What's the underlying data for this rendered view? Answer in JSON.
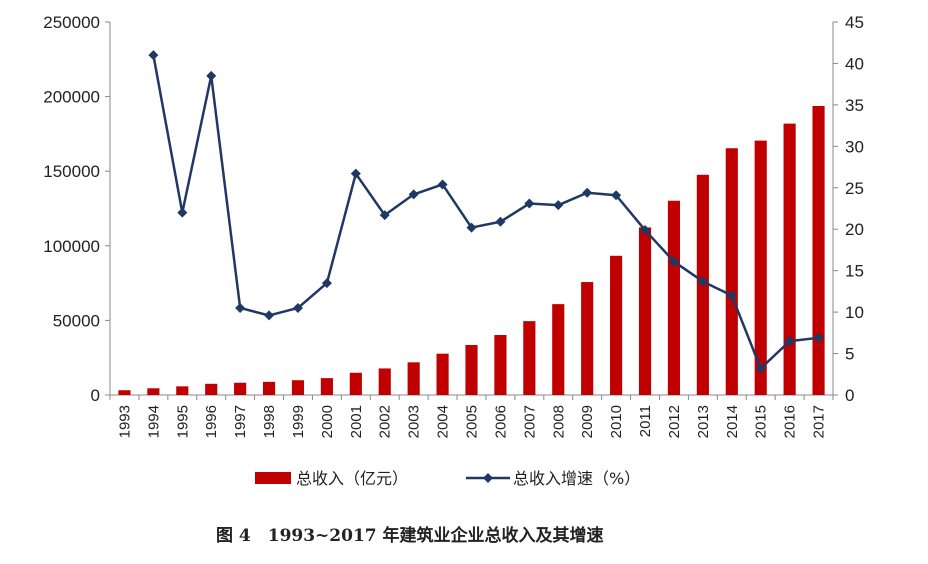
{
  "chart_data": {
    "type": "bar+line",
    "categories": [
      "1993",
      "1994",
      "1995",
      "1996",
      "1997",
      "1998",
      "1999",
      "2000",
      "2001",
      "2002",
      "2003",
      "2004",
      "2005",
      "2006",
      "2007",
      "2008",
      "2009",
      "2010",
      "2011",
      "2012",
      "2013",
      "2014",
      "2015",
      "2016",
      "2017"
    ],
    "series": [
      {
        "name": "总收入（亿元）",
        "type": "bar",
        "axis": "left",
        "color": "#C00000",
        "values": [
          3200,
          4500,
          5800,
          7500,
          8200,
          8800,
          9900,
          11300,
          14900,
          17800,
          21900,
          27700,
          33500,
          40200,
          49500,
          60900,
          75700,
          93300,
          112300,
          130200,
          147600,
          165400,
          170500,
          181900,
          193700
        ]
      },
      {
        "name": "总收入增速（%）",
        "type": "line",
        "axis": "right",
        "color": "#1F3864",
        "marker": "diamond",
        "values": [
          null,
          41.0,
          22.0,
          38.5,
          10.5,
          9.6,
          10.5,
          13.5,
          26.7,
          21.7,
          24.2,
          25.4,
          20.2,
          20.9,
          23.1,
          22.9,
          24.4,
          24.1,
          19.9,
          16.1,
          13.7,
          12.0,
          3.2,
          6.5,
          6.9
        ]
      }
    ],
    "y_left": {
      "ticks": [
        "0",
        "50000",
        "100000",
        "150000",
        "200000",
        "250000"
      ],
      "min": 0,
      "max": 250000
    },
    "y_right": {
      "ticks": [
        "0",
        "5",
        "10",
        "15",
        "20",
        "25",
        "30",
        "35",
        "40",
        "45"
      ],
      "min": 0,
      "max": 45
    },
    "grid": false,
    "legend_position": "bottom",
    "caption": "图 4　1993~2017 年建筑业企业总收入及其增速"
  }
}
